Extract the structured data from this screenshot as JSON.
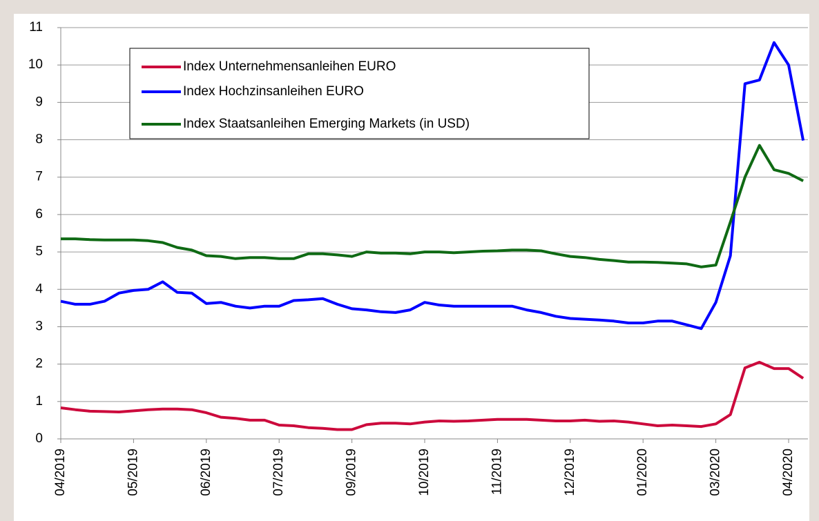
{
  "chart_data": {
    "type": "line",
    "categories": [
      "04/2019",
      null,
      null,
      null,
      null,
      "05/2019",
      null,
      null,
      null,
      null,
      "06/2019",
      null,
      null,
      null,
      null,
      "07/2019",
      null,
      null,
      null,
      null,
      "09/2019",
      null,
      null,
      null,
      null,
      "10/2019",
      null,
      null,
      null,
      null,
      "11/2019",
      null,
      null,
      null,
      null,
      "12/2019",
      null,
      null,
      null,
      null,
      "01/2020",
      null,
      null,
      null,
      null,
      "03/2020",
      null,
      null,
      null,
      null,
      "04/2020",
      null
    ],
    "series": [
      {
        "name": "Index Unternehmensanleihen EURO",
        "color": "#cc0a3c",
        "values": [
          0.83,
          0.78,
          0.74,
          0.73,
          0.72,
          0.75,
          0.78,
          0.8,
          0.8,
          0.78,
          0.7,
          0.58,
          0.55,
          0.5,
          0.5,
          0.37,
          0.35,
          0.3,
          0.28,
          0.25,
          0.25,
          0.38,
          0.42,
          0.42,
          0.4,
          0.45,
          0.48,
          0.47,
          0.48,
          0.5,
          0.52,
          0.52,
          0.52,
          0.5,
          0.48,
          0.48,
          0.5,
          0.47,
          0.48,
          0.45,
          0.4,
          0.35,
          0.37,
          0.35,
          0.33,
          0.4,
          0.65,
          1.9,
          2.05,
          1.88,
          1.88,
          1.62
        ]
      },
      {
        "name": "Index Hochzinsanleihen EURO",
        "color": "#0000ff",
        "values": [
          3.68,
          3.6,
          3.6,
          3.68,
          3.9,
          3.97,
          4.0,
          4.2,
          3.92,
          3.9,
          3.62,
          3.65,
          3.55,
          3.5,
          3.55,
          3.55,
          3.7,
          3.72,
          3.75,
          3.6,
          3.48,
          3.45,
          3.4,
          3.38,
          3.45,
          3.65,
          3.58,
          3.55,
          3.55,
          3.55,
          3.55,
          3.55,
          3.45,
          3.38,
          3.28,
          3.22,
          3.2,
          3.18,
          3.15,
          3.1,
          3.1,
          3.15,
          3.15,
          3.05,
          2.95,
          3.65,
          4.9,
          9.5,
          9.6,
          10.6,
          10.0,
          7.98
        ]
      },
      {
        "name": "Index Staatsanleihen Emerging Markets (in USD)",
        "color": "#0f6a14",
        "values": [
          5.35,
          5.35,
          5.33,
          5.32,
          5.32,
          5.32,
          5.3,
          5.25,
          5.12,
          5.05,
          4.9,
          4.88,
          4.82,
          4.85,
          4.85,
          4.82,
          4.82,
          4.95,
          4.95,
          4.92,
          4.88,
          5.0,
          4.97,
          4.97,
          4.95,
          5.0,
          5.0,
          4.98,
          5.0,
          5.02,
          5.03,
          5.05,
          5.05,
          5.03,
          4.95,
          4.88,
          4.85,
          4.8,
          4.77,
          4.73,
          4.73,
          4.72,
          4.7,
          4.68,
          4.6,
          4.65,
          5.8,
          7.0,
          7.85,
          7.2,
          7.1,
          6.9
        ]
      }
    ],
    "ylim": [
      0,
      11
    ],
    "yticks": [
      0,
      1,
      2,
      3,
      4,
      5,
      6,
      7,
      8,
      9,
      10,
      11
    ],
    "grid": true
  }
}
